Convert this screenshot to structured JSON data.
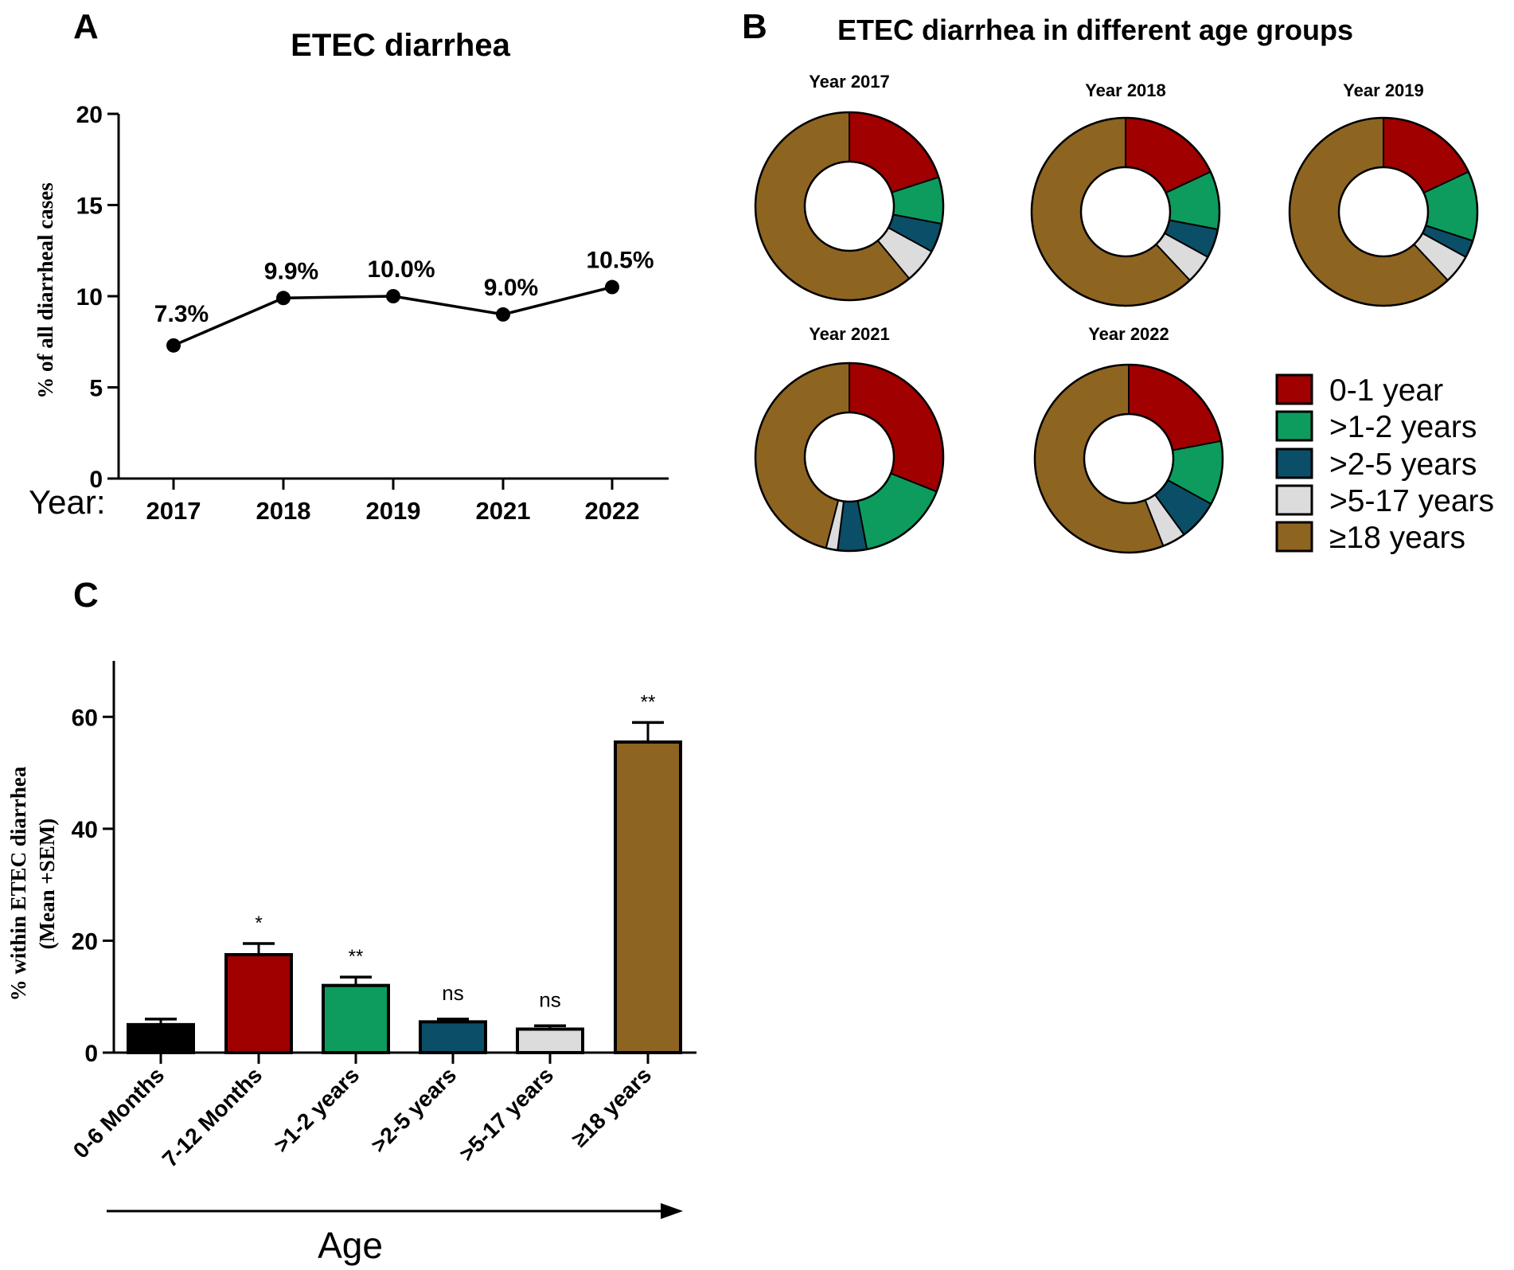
{
  "panels": {
    "a": {
      "letter": "A",
      "chart_data": {
        "type": "line",
        "title": "ETEC diarrhea",
        "ylabel": "% of all diarrheal cases",
        "xlabel": "Year:",
        "categories": [
          "2017",
          "2018",
          "2019",
          "2021",
          "2022"
        ],
        "values": [
          7.3,
          9.9,
          10.0,
          9.0,
          10.5
        ],
        "data_labels": [
          "7.3%",
          "9.9%",
          "10.0%",
          "9.0%",
          "10.5%"
        ],
        "ylim": [
          0,
          20
        ],
        "yticks": [
          "0",
          "5",
          "10",
          "15",
          "20"
        ]
      }
    },
    "b": {
      "letter": "B",
      "title": "ETEC diarrhea in different age groups",
      "chart_data": {
        "type": "pie",
        "donut": true,
        "categories": [
          "0-1 year",
          ">1-2 years",
          ">2-5 years",
          ">5-17 years",
          "≥18 years"
        ],
        "colors": [
          "#a00000",
          "#0e9c5e",
          "#0b4e68",
          "#dcdcdc",
          "#8e6421"
        ],
        "charts": [
          {
            "title": "Year 2017",
            "values": [
              20,
              8,
              5,
              6,
              61
            ]
          },
          {
            "title": "Year 2018",
            "values": [
              18,
              10,
              5,
              5,
              62
            ]
          },
          {
            "title": "Year 2019",
            "values": [
              18,
              12,
              3,
              5,
              62
            ]
          },
          {
            "title": "Year 2021",
            "values": [
              31,
              16,
              5,
              2,
              46
            ]
          },
          {
            "title": "Year 2022",
            "values": [
              22,
              11,
              7,
              4,
              56
            ]
          }
        ]
      }
    },
    "c": {
      "letter": "C",
      "chart_data": {
        "type": "bar",
        "ylabel_line1": "% within ETEC diarrhea",
        "ylabel_line2": "(Mean +SEM)",
        "xlabel": "Age",
        "categories": [
          "0-6 Months",
          "7-12 Months",
          ">1-2 years",
          ">2-5 years",
          ">5-17 years",
          "≥18 years"
        ],
        "values": [
          5,
          17.5,
          12,
          5.5,
          4.2,
          55.5
        ],
        "errors": [
          1,
          2,
          1.5,
          0.5,
          0.6,
          3.5
        ],
        "significance": [
          "",
          "*",
          "**",
          "ns",
          "ns",
          "**"
        ],
        "colors": [
          "#000000",
          "#a00000",
          "#0e9c5e",
          "#0b4e68",
          "#dcdcdc",
          "#8e6421"
        ],
        "ylim": [
          0,
          70
        ],
        "yticks": [
          "0",
          "20",
          "40",
          "60"
        ]
      }
    }
  }
}
